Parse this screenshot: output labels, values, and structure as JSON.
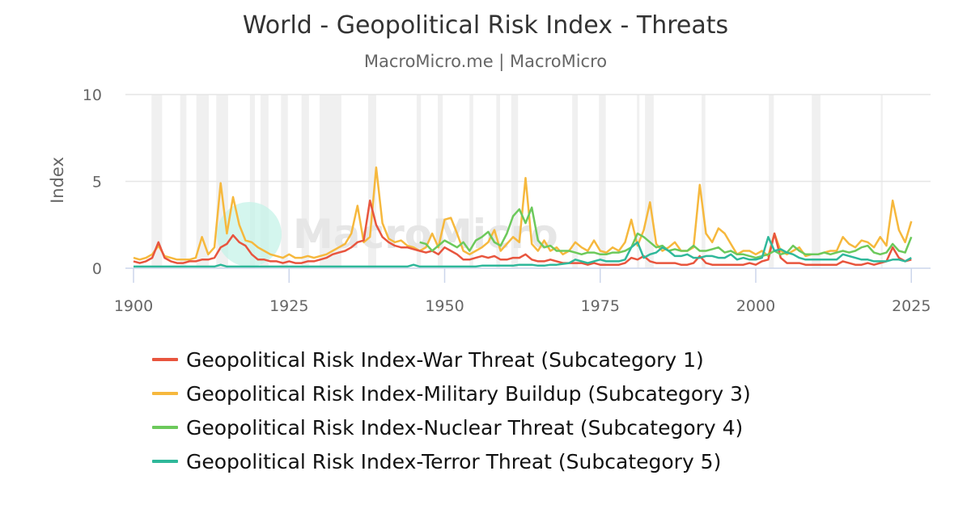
{
  "title": "World - Geopolitical Risk Index - Threats",
  "subtitle": "MacroMicro.me | MacroMicro",
  "watermark": "MacroMicro",
  "chart_data": {
    "type": "line",
    "title": "World - Geopolitical Risk Index - Threats",
    "xlabel": "",
    "ylabel": "Index",
    "xlim": [
      1900,
      2026
    ],
    "ylim": [
      0,
      10
    ],
    "x_ticks": [
      "1900",
      "1925",
      "1950",
      "1975",
      "2000",
      "2025"
    ],
    "y_ticks": [
      "0",
      "5",
      "10"
    ],
    "grid": true,
    "legend_position": "bottom",
    "shaded_periods": [
      [
        1902.9,
        1904.6
      ],
      [
        1907.5,
        1908.5
      ],
      [
        1910.1,
        1912.1
      ],
      [
        1913.3,
        1915.2
      ],
      [
        1918.7,
        1919.5
      ],
      [
        1920.4,
        1921.7
      ],
      [
        1923.7,
        1924.8
      ],
      [
        1927.0,
        1928.2
      ],
      [
        1929.9,
        1933.4
      ],
      [
        1937.7,
        1939.0
      ],
      [
        1945.5,
        1946.2
      ],
      [
        1948.9,
        1949.7
      ],
      [
        1954.0,
        1954.6
      ],
      [
        1958.3,
        1958.9
      ],
      [
        1960.7,
        1961.8
      ],
      [
        1970.5,
        1971.4
      ],
      [
        1974.8,
        1975.9
      ],
      [
        1980.9,
        1981.3
      ],
      [
        1982.2,
        1983.6
      ],
      [
        1991.3,
        1991.9
      ],
      [
        2002.1,
        2002.9
      ],
      [
        2009.0,
        2010.4
      ],
      [
        2020.1,
        2020.4
      ]
    ],
    "x_start": 1900,
    "x_step": 1,
    "series": [
      {
        "name": "Geopolitical Risk Index-War Threat (Subcategory 1)",
        "color": "#e8553e",
        "values": [
          0.4,
          0.3,
          0.4,
          0.6,
          1.5,
          0.6,
          0.4,
          0.3,
          0.3,
          0.4,
          0.4,
          0.5,
          0.5,
          0.6,
          1.2,
          1.4,
          1.9,
          1.5,
          1.3,
          0.8,
          0.5,
          0.5,
          0.4,
          0.4,
          0.3,
          0.4,
          0.3,
          0.3,
          0.4,
          0.4,
          0.5,
          0.6,
          0.8,
          0.9,
          1.0,
          1.2,
          1.5,
          1.6,
          3.9,
          2.5,
          1.8,
          1.5,
          1.3,
          1.2,
          1.2,
          1.1,
          1.0,
          0.9,
          1.0,
          0.8,
          1.2,
          1.0,
          0.8,
          0.5,
          0.5,
          0.6,
          0.7,
          0.6,
          0.7,
          0.5,
          0.5,
          0.6,
          0.6,
          0.8,
          0.5,
          0.4,
          0.4,
          0.5,
          0.4,
          0.3,
          0.3,
          0.3,
          0.3,
          0.2,
          0.3,
          0.2,
          0.2,
          0.2,
          0.2,
          0.3,
          0.6,
          0.5,
          0.7,
          0.4,
          0.3,
          0.3,
          0.3,
          0.3,
          0.2,
          0.2,
          0.3,
          0.7,
          0.3,
          0.2,
          0.2,
          0.2,
          0.2,
          0.2,
          0.2,
          0.3,
          0.2,
          0.4,
          0.5,
          2.0,
          0.6,
          0.3,
          0.3,
          0.3,
          0.2,
          0.2,
          0.2,
          0.2,
          0.2,
          0.2,
          0.4,
          0.3,
          0.2,
          0.2,
          0.3,
          0.2,
          0.3,
          0.4,
          1.2,
          0.6,
          0.4,
          0.5
        ]
      },
      {
        "name": "Geopolitical Risk Index-Military Buildup (Subcategory 3)",
        "color": "#f6b83d",
        "values": [
          0.6,
          0.5,
          0.6,
          0.8,
          1.3,
          0.7,
          0.6,
          0.5,
          0.5,
          0.5,
          0.6,
          1.8,
          0.8,
          1.2,
          4.9,
          2.0,
          4.1,
          2.5,
          1.6,
          1.5,
          1.2,
          1.0,
          0.8,
          0.7,
          0.6,
          0.8,
          0.6,
          0.6,
          0.7,
          0.6,
          0.7,
          0.8,
          1.0,
          1.2,
          1.4,
          2.0,
          3.6,
          1.5,
          1.8,
          5.8,
          2.6,
          1.7,
          1.5,
          1.6,
          1.3,
          1.2,
          1.0,
          1.2,
          2.0,
          1.2,
          2.8,
          2.9,
          2.0,
          1.0,
          0.8,
          1.0,
          1.2,
          1.5,
          2.2,
          1.0,
          1.4,
          1.8,
          1.5,
          5.2,
          1.4,
          1.0,
          1.6,
          1.0,
          1.2,
          0.8,
          1.0,
          1.5,
          1.2,
          1.0,
          1.6,
          1.0,
          0.9,
          1.2,
          1.0,
          1.5,
          2.8,
          1.3,
          2.2,
          3.8,
          1.4,
          1.0,
          1.2,
          1.5,
          1.0,
          1.0,
          1.2,
          4.8,
          2.0,
          1.5,
          2.3,
          2.0,
          1.4,
          0.8,
          1.0,
          1.0,
          0.8,
          1.0,
          0.7,
          2.0,
          1.0,
          0.8,
          1.0,
          1.2,
          0.7,
          0.8,
          0.8,
          0.9,
          1.0,
          1.0,
          1.8,
          1.4,
          1.2,
          1.6,
          1.5,
          1.2,
          1.8,
          1.3,
          3.9,
          2.2,
          1.5,
          2.7
        ]
      },
      {
        "name": "Geopolitical Risk Index-Nuclear Threat (Subcategory 4)",
        "color": "#6cc95b",
        "values": [
          null,
          null,
          null,
          null,
          null,
          null,
          null,
          null,
          null,
          null,
          null,
          null,
          null,
          null,
          null,
          null,
          null,
          null,
          null,
          null,
          null,
          null,
          null,
          null,
          null,
          null,
          null,
          null,
          null,
          null,
          null,
          null,
          null,
          null,
          null,
          null,
          null,
          null,
          null,
          null,
          null,
          null,
          null,
          null,
          null,
          null,
          1.5,
          1.4,
          1.0,
          1.3,
          1.6,
          1.4,
          1.2,
          1.5,
          1.0,
          1.6,
          1.8,
          2.1,
          1.5,
          1.3,
          2.0,
          3.0,
          3.4,
          2.6,
          3.5,
          1.6,
          1.2,
          1.3,
          1.0,
          1.0,
          1.0,
          0.9,
          0.8,
          0.9,
          0.9,
          0.8,
          0.8,
          0.9,
          0.9,
          1.0,
          1.2,
          2.0,
          1.8,
          1.5,
          1.2,
          1.3,
          1.0,
          1.1,
          1.0,
          1.0,
          1.3,
          1.0,
          1.0,
          1.1,
          1.2,
          0.9,
          1.0,
          0.8,
          0.8,
          0.7,
          0.6,
          0.7,
          0.8,
          1.0,
          0.8,
          0.9,
          1.3,
          1.0,
          0.8,
          0.8,
          0.8,
          0.9,
          0.8,
          0.9,
          1.0,
          0.9,
          1.0,
          1.2,
          1.3,
          0.9,
          0.8,
          0.9,
          1.4,
          1.0,
          0.9,
          1.8
        ]
      },
      {
        "name": "Geopolitical Risk Index-Terror Threat (Subcategory 5)",
        "color": "#2fb89a",
        "values": [
          0.1,
          0.1,
          0.1,
          0.1,
          0.1,
          0.1,
          0.1,
          0.1,
          0.1,
          0.1,
          0.1,
          0.1,
          0.1,
          0.1,
          0.2,
          0.1,
          0.1,
          0.1,
          0.1,
          0.1,
          0.1,
          0.1,
          0.1,
          0.1,
          0.1,
          0.1,
          0.1,
          0.1,
          0.1,
          0.1,
          0.1,
          0.1,
          0.1,
          0.1,
          0.1,
          0.1,
          0.1,
          0.1,
          0.1,
          0.1,
          0.1,
          0.1,
          0.1,
          0.1,
          0.1,
          0.2,
          0.1,
          0.1,
          0.1,
          0.1,
          0.1,
          0.1,
          0.1,
          0.1,
          0.1,
          0.1,
          0.15,
          0.15,
          0.15,
          0.15,
          0.15,
          0.15,
          0.2,
          0.2,
          0.2,
          0.15,
          0.15,
          0.2,
          0.2,
          0.25,
          0.3,
          0.5,
          0.4,
          0.3,
          0.4,
          0.5,
          0.4,
          0.4,
          0.4,
          0.5,
          1.2,
          1.5,
          0.6,
          0.8,
          0.9,
          1.2,
          1.0,
          0.7,
          0.7,
          0.8,
          0.6,
          0.6,
          0.7,
          0.7,
          0.6,
          0.6,
          0.8,
          0.5,
          0.6,
          0.5,
          0.5,
          0.6,
          1.8,
          1.0,
          1.1,
          0.9,
          0.8,
          0.6,
          0.5,
          0.5,
          0.5,
          0.5,
          0.5,
          0.5,
          0.8,
          0.7,
          0.6,
          0.5,
          0.5,
          0.4,
          0.4,
          0.4,
          0.5,
          0.5,
          0.4,
          0.6
        ]
      }
    ]
  }
}
